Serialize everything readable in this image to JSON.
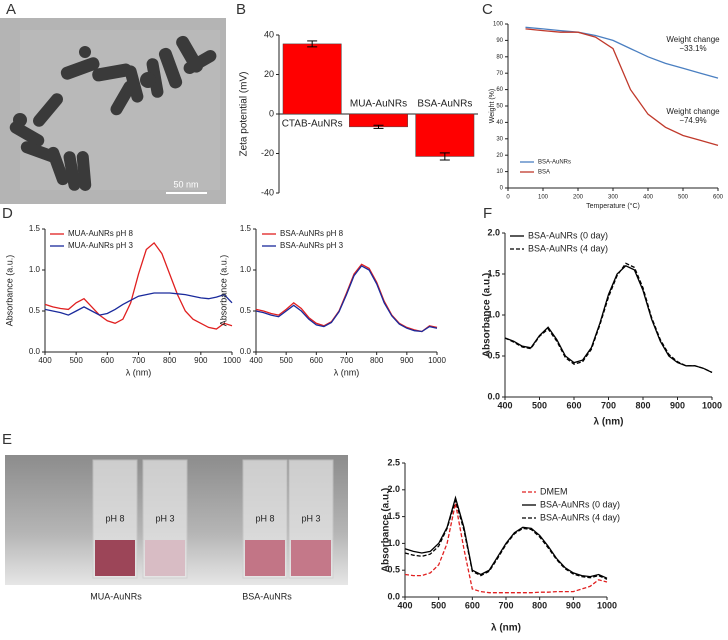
{
  "panels": [
    "A",
    "B",
    "C",
    "D",
    "E",
    "F"
  ],
  "figure_a": {
    "scale_bar": "50 nm"
  },
  "figure_e": {
    "cuvette_labels": [
      "pH 8",
      "pH 3",
      "pH 8",
      "pH 3"
    ],
    "sample_labels": [
      "MUA-AuNRs",
      "BSA-AuNRs"
    ]
  },
  "chart_data": [
    {
      "type": "bar",
      "y_label": "Zeta potential (mV)",
      "categories": [
        "CTAB-AuNRs",
        "MUA-AuNRs",
        "BSA-AuNRs"
      ],
      "values": [
        35.5,
        -6.5,
        -21.5
      ],
      "errors": [
        1.5,
        0.8,
        1.8
      ],
      "color": "#ff0000",
      "ylim": [
        -40,
        40
      ],
      "yticks": [
        -40,
        -20,
        0,
        20,
        40
      ]
    },
    {
      "type": "line",
      "x_label": "Temperature (°C)",
      "y_label": "Weight (%)",
      "x": [
        50,
        100,
        150,
        200,
        250,
        300,
        350,
        400,
        450,
        500,
        550,
        600
      ],
      "series": [
        {
          "name": "BSA-AuNRs",
          "color": "#4a7fc1",
          "values": [
            98,
            97,
            96,
            95,
            93,
            90,
            85,
            80,
            76,
            73,
            70,
            67
          ]
        },
        {
          "name": "BSA",
          "color": "#c0392b",
          "values": [
            97,
            96,
            95,
            95,
            92,
            85,
            60,
            45,
            37,
            32,
            29,
            26
          ]
        }
      ],
      "annotations": [
        [
          "Weight change",
          "−33.1%"
        ],
        [
          "Weight change",
          "−74.9%"
        ]
      ],
      "xlim": [
        0,
        600
      ],
      "xticks": [
        0,
        100,
        200,
        300,
        400,
        500,
        600
      ],
      "ylim": [
        0,
        100
      ],
      "yticks": [
        0,
        10,
        20,
        30,
        40,
        50,
        60,
        70,
        80,
        90,
        100
      ]
    },
    {
      "type": "line",
      "x_label": "λ (nm)",
      "y_label": "Absorbance (a.u.)",
      "x": [
        400,
        425,
        450,
        475,
        500,
        525,
        550,
        575,
        600,
        625,
        650,
        675,
        700,
        725,
        750,
        775,
        800,
        825,
        850,
        875,
        900,
        925,
        950,
        975,
        1000
      ],
      "series": [
        {
          "name": "MUA-AuNRs pH 8",
          "color": "#e02020",
          "values": [
            0.58,
            0.55,
            0.53,
            0.52,
            0.6,
            0.65,
            0.55,
            0.45,
            0.38,
            0.35,
            0.4,
            0.6,
            0.95,
            1.25,
            1.33,
            1.2,
            0.95,
            0.7,
            0.5,
            0.4,
            0.35,
            0.3,
            0.28,
            0.35,
            0.32
          ]
        },
        {
          "name": "MUA-AuNRs pH 3",
          "color": "#1a2a9c",
          "values": [
            0.52,
            0.5,
            0.48,
            0.45,
            0.5,
            0.55,
            0.5,
            0.45,
            0.47,
            0.52,
            0.58,
            0.63,
            0.68,
            0.7,
            0.72,
            0.72,
            0.72,
            0.71,
            0.7,
            0.68,
            0.66,
            0.65,
            0.67,
            0.7,
            0.6
          ]
        }
      ],
      "xlim": [
        400,
        1000
      ],
      "xticks": [
        400,
        500,
        600,
        700,
        800,
        900,
        1000
      ],
      "ylim": [
        0,
        1.5
      ],
      "yticks": [
        {
          "value": 0,
          "label": "0.0"
        },
        0.5,
        {
          "value": 1,
          "label": "1.0"
        },
        1.5
      ]
    },
    {
      "type": "line",
      "x_label": "λ (nm)",
      "y_label": "Absorbance (a.u.)",
      "x": [
        400,
        425,
        450,
        475,
        500,
        525,
        550,
        575,
        600,
        625,
        650,
        675,
        700,
        725,
        750,
        775,
        800,
        825,
        850,
        875,
        900,
        925,
        950,
        975,
        1000
      ],
      "series": [
        {
          "name": "BSA-AuNRs pH 8",
          "color": "#e02020",
          "values": [
            0.52,
            0.5,
            0.47,
            0.45,
            0.52,
            0.6,
            0.53,
            0.42,
            0.35,
            0.32,
            0.37,
            0.5,
            0.72,
            0.95,
            1.07,
            1.02,
            0.85,
            0.62,
            0.45,
            0.35,
            0.3,
            0.27,
            0.25,
            0.32,
            0.3
          ]
        },
        {
          "name": "BSA-AuNRs pH 3",
          "color": "#1a2a9c",
          "values": [
            0.5,
            0.48,
            0.45,
            0.43,
            0.5,
            0.57,
            0.5,
            0.4,
            0.33,
            0.31,
            0.36,
            0.49,
            0.7,
            0.93,
            1.05,
            1.0,
            0.83,
            0.6,
            0.44,
            0.34,
            0.29,
            0.26,
            0.25,
            0.31,
            0.29
          ]
        }
      ],
      "xlim": [
        400,
        1000
      ],
      "xticks": [
        400,
        500,
        600,
        700,
        800,
        900,
        1000
      ],
      "ylim": [
        0,
        1.5
      ],
      "yticks": [
        {
          "value": 0,
          "label": "0.0"
        },
        0.5,
        {
          "value": 1,
          "label": "1.0"
        },
        1.5
      ]
    },
    {
      "type": "line",
      "x_label": "λ (nm)",
      "y_label": "Absorbance (a.u.)",
      "x": [
        400,
        425,
        450,
        475,
        500,
        525,
        550,
        575,
        600,
        625,
        650,
        675,
        700,
        725,
        750,
        775,
        800,
        825,
        850,
        875,
        900,
        925,
        950,
        975,
        1000
      ],
      "series": [
        {
          "name": "BSA-AuNRs (0 day)",
          "color": "#000000",
          "dash": false,
          "values": [
            0.72,
            0.68,
            0.62,
            0.6,
            0.75,
            0.85,
            0.7,
            0.5,
            0.42,
            0.45,
            0.6,
            0.9,
            1.25,
            1.5,
            1.6,
            1.55,
            1.3,
            0.95,
            0.68,
            0.5,
            0.42,
            0.38,
            0.38,
            0.35,
            0.3
          ]
        },
        {
          "name": "BSA-AuNRs (4 day)",
          "color": "#000000",
          "dash": true,
          "values": [
            0.72,
            0.67,
            0.61,
            0.59,
            0.74,
            0.83,
            0.68,
            0.48,
            0.4,
            0.43,
            0.58,
            0.88,
            1.22,
            1.48,
            1.63,
            1.58,
            1.33,
            0.97,
            0.7,
            0.52,
            0.43,
            0.38,
            0.38,
            0.35,
            0.3
          ]
        }
      ],
      "xlim": [
        400,
        1000
      ],
      "xticks": [
        400,
        500,
        600,
        700,
        800,
        900,
        1000
      ],
      "ylim": [
        0,
        2
      ],
      "yticks": [
        {
          "value": 0,
          "label": "0.0"
        },
        0.5,
        {
          "value": 1,
          "label": "1.0"
        },
        1.5,
        {
          "value": 2,
          "label": "2.0"
        }
      ]
    },
    {
      "type": "line",
      "x_label": "λ (nm)",
      "y_label": "Absorbance (a.u.)",
      "x": [
        400,
        425,
        450,
        475,
        500,
        525,
        550,
        575,
        600,
        625,
        650,
        675,
        700,
        725,
        750,
        775,
        800,
        825,
        850,
        875,
        900,
        925,
        950,
        975,
        1000
      ],
      "series": [
        {
          "name": "DMEM",
          "color": "#e02020",
          "dash": true,
          "values": [
            0.42,
            0.4,
            0.4,
            0.45,
            0.6,
            1.0,
            1.75,
            0.9,
            0.15,
            0.1,
            0.08,
            0.08,
            0.08,
            0.08,
            0.08,
            0.08,
            0.09,
            0.09,
            0.1,
            0.1,
            0.1,
            0.15,
            0.2,
            0.32,
            0.28
          ]
        },
        {
          "name": "BSA-AuNRs (0 day)",
          "color": "#000000",
          "dash": false,
          "values": [
            0.9,
            0.85,
            0.82,
            0.85,
            1.0,
            1.3,
            1.85,
            1.3,
            0.5,
            0.42,
            0.5,
            0.75,
            1.0,
            1.2,
            1.3,
            1.28,
            1.15,
            0.95,
            0.72,
            0.55,
            0.45,
            0.4,
            0.38,
            0.42,
            0.35
          ]
        },
        {
          "name": "BSA-AuNRs (4 day)",
          "color": "#000000",
          "dash": true,
          "values": [
            0.82,
            0.78,
            0.76,
            0.8,
            0.95,
            1.28,
            1.8,
            1.25,
            0.48,
            0.4,
            0.48,
            0.72,
            0.98,
            1.18,
            1.28,
            1.26,
            1.12,
            0.92,
            0.7,
            0.53,
            0.43,
            0.38,
            0.36,
            0.4,
            0.33
          ]
        }
      ],
      "xlim": [
        400,
        1000
      ],
      "xticks": [
        400,
        500,
        600,
        700,
        800,
        900,
        1000
      ],
      "ylim": [
        0,
        2.5
      ],
      "yticks": [
        {
          "value": 0,
          "label": "0.0"
        },
        0.5,
        {
          "value": 1,
          "label": "1.0"
        },
        1.5,
        {
          "value": 2,
          "label": "2.0"
        },
        2.5
      ]
    }
  ]
}
